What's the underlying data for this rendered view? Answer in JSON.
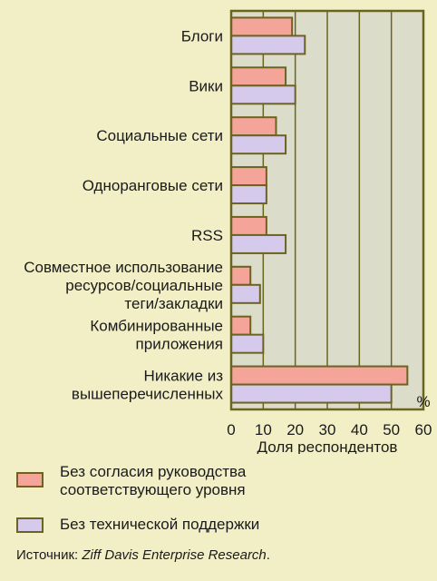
{
  "colors": {
    "background": "#f2efc6",
    "plot_bg": "#dcdccb",
    "axis": "#6b6420",
    "series_1": "#f5a49a",
    "series_2": "#d5c9ec"
  },
  "chart_data": {
    "type": "bar",
    "orientation": "horizontal",
    "categories": [
      [
        "Блоги"
      ],
      [
        "Вики"
      ],
      [
        "Социальные сети"
      ],
      [
        "Одноранговые сети"
      ],
      [
        "RSS"
      ],
      [
        "Совместное использование",
        "ресурсов/социальные",
        "теги/закладки"
      ],
      [
        "Комбинированные",
        "приложения"
      ],
      [
        "Никакие из",
        "вышеперечисленных"
      ]
    ],
    "series": [
      {
        "name": "Без согласия руководства соответствующего уровня",
        "values": [
          19,
          17,
          14,
          11,
          11,
          6,
          6,
          55
        ]
      },
      {
        "name": "Без технической поддержки",
        "values": [
          23,
          20,
          17,
          11,
          17,
          9,
          10,
          50
        ]
      }
    ],
    "xlim": [
      0,
      60
    ],
    "xticks": [
      0,
      10,
      20,
      30,
      40,
      50,
      60
    ],
    "xlabel": "Доля респондентов",
    "unit": "%",
    "grid": true,
    "legend_position": "bottom"
  },
  "legend": {
    "item1_line1": "Без согласия руководства",
    "item1_line2": "соответствующего уровня",
    "item2": "Без технической поддержки"
  },
  "source": {
    "prefix": "Источник: ",
    "name": "Ziff Davis Enterprise Research",
    "suffix": "."
  }
}
